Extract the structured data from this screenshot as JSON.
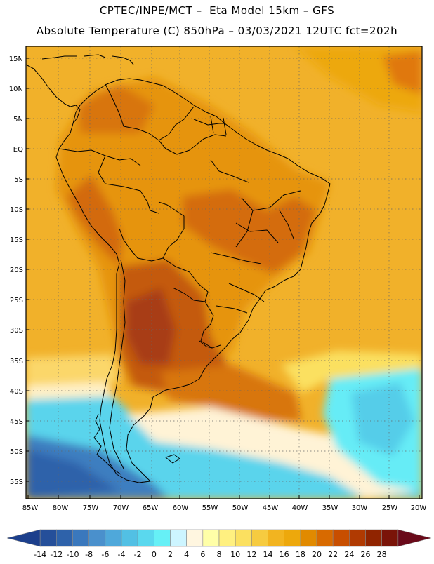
{
  "header": {
    "line1": "CPTEC/INPE/MCT –  Eta Model 15km – GFS",
    "line2": "Absolute Temperature (C) 850hPa – 03/03/2021 12UTC fct=202h"
  },
  "map": {
    "lat_labels": [
      "15N",
      "10N",
      "5N",
      "EQ",
      "5S",
      "10S",
      "15S",
      "20S",
      "25S",
      "30S",
      "35S",
      "40S",
      "45S",
      "50S",
      "55S"
    ],
    "lon_labels": [
      "85W",
      "80W",
      "75W",
      "70W",
      "65W",
      "60W",
      "55W",
      "50W",
      "45W",
      "40W",
      "35W",
      "30W",
      "25W",
      "20W"
    ]
  },
  "colorbar": {
    "labels": [
      "-14",
      "-12",
      "-10",
      "-8",
      "-6",
      "-4",
      "-2",
      "0",
      "2",
      "4",
      "6",
      "8",
      "10",
      "12",
      "14",
      "16",
      "18",
      "20",
      "22",
      "24",
      "26",
      "28"
    ],
    "colors": [
      "#1c3f8c",
      "#254f9a",
      "#2e62aa",
      "#3a78bd",
      "#4a90cc",
      "#4fa8da",
      "#52c0e4",
      "#5ad8ee",
      "#66f0f6",
      "#cdf5ff",
      "#fff6e0",
      "#ffffa8",
      "#fff080",
      "#fbe060",
      "#f6cb40",
      "#f2b420",
      "#eda80c",
      "#e18a00",
      "#d86a00",
      "#c84e00",
      "#b03a02",
      "#902400",
      "#7a1408",
      "#6a0a1a"
    ]
  },
  "colors": {
    "ocean_warm": "#f1b12a",
    "land_warm": "#e7960f",
    "hot": "#c95d10",
    "cold_ocean": "#4fc6e4",
    "deep_cold": "#3c7ec0"
  }
}
